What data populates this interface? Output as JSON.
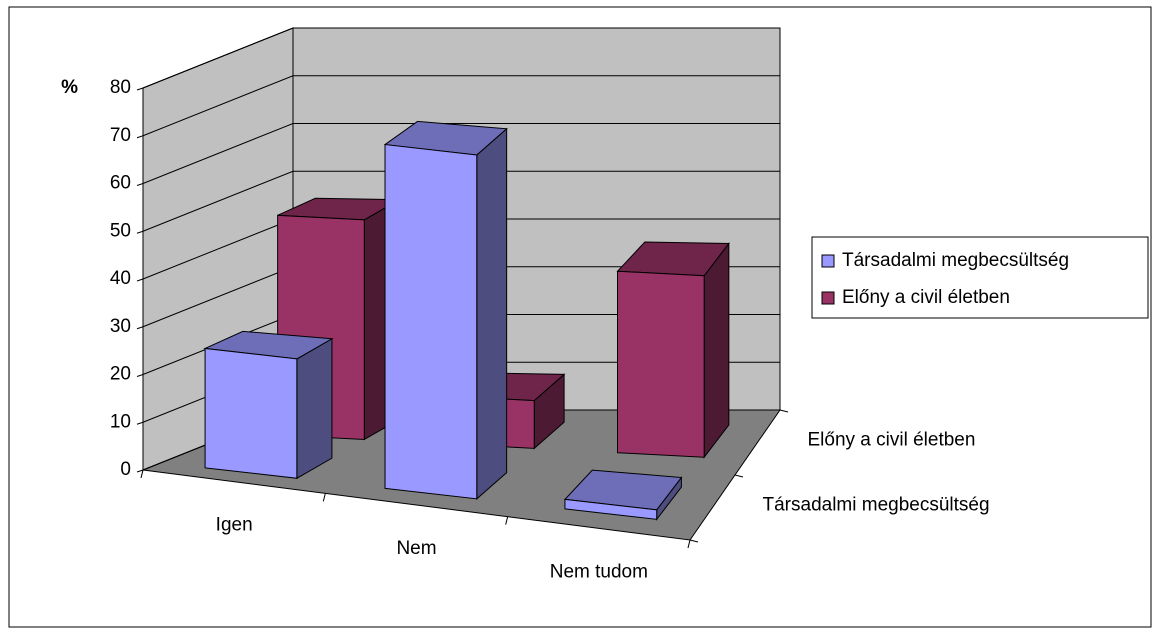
{
  "chart_data": {
    "type": "bar3d",
    "y_label": "%",
    "categories": [
      "Igen",
      "Nem",
      "Nem tudom"
    ],
    "series": [
      {
        "name": "Társadalmi megbecsültség",
        "color": "#9999ff",
        "values": [
          25,
          72,
          2
        ]
      },
      {
        "name": "Előny a civil életben",
        "color": "#993366",
        "values": [
          46,
          10,
          38
        ]
      }
    ],
    "ylim": [
      0,
      80
    ],
    "yticks": [
      0,
      10,
      20,
      30,
      40,
      50,
      60,
      70,
      80
    ],
    "grid": true,
    "legend": "right"
  }
}
